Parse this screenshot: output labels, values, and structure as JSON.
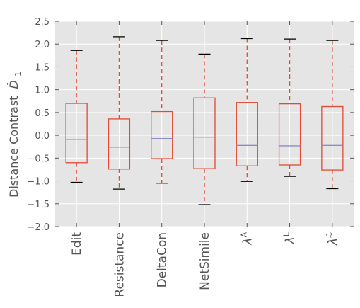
{
  "chart_data": {
    "type": "box",
    "title": "",
    "ylabel": "Distance Contrast",
    "ylabel_symbol": "D̂",
    "ylabel_subscript": "1",
    "ylim": [
      -2.0,
      2.5
    ],
    "yticks": [
      -2.0,
      -1.5,
      -1.0,
      -0.5,
      0.0,
      0.5,
      1.0,
      1.5,
      2.0,
      2.5
    ],
    "ytick_labels": [
      "−2.0",
      "−1.5",
      "−1.0",
      "−0.5",
      "0.0",
      "0.5",
      "1.0",
      "1.5",
      "2.0",
      "2.5"
    ],
    "grid": true,
    "colors": {
      "background": "#e5e5e5",
      "grid": "#ffffff",
      "box": "#e24a33",
      "median": "#8b8bc8",
      "cap": "#000000",
      "tick": "#555555"
    },
    "categories": [
      {
        "label": "Edit",
        "base": "",
        "sup": ""
      },
      {
        "label": "Resistance",
        "base": "",
        "sup": ""
      },
      {
        "label": "DeltaCon",
        "base": "",
        "sup": ""
      },
      {
        "label": "NetSimile",
        "base": "",
        "sup": ""
      },
      {
        "label": "",
        "base": "λ",
        "sup": "A"
      },
      {
        "label": "",
        "base": "λ",
        "sup": "L"
      },
      {
        "label": "",
        "base": "λ",
        "sup": "ℒ"
      }
    ],
    "boxes": [
      {
        "whislo": -1.03,
        "q1": -0.6,
        "med": -0.09,
        "q3": 0.7,
        "whishi": 1.86
      },
      {
        "whislo": -1.18,
        "q1": -0.74,
        "med": -0.26,
        "q3": 0.36,
        "whishi": 2.16
      },
      {
        "whislo": -1.05,
        "q1": -0.51,
        "med": -0.07,
        "q3": 0.52,
        "whishi": 2.08
      },
      {
        "whislo": -1.52,
        "q1": -0.73,
        "med": -0.04,
        "q3": 0.82,
        "whishi": 1.78
      },
      {
        "whislo": -1.01,
        "q1": -0.67,
        "med": -0.22,
        "q3": 0.72,
        "whishi": 2.12
      },
      {
        "whislo": -0.9,
        "q1": -0.65,
        "med": -0.23,
        "q3": 0.69,
        "whishi": 2.11
      },
      {
        "whislo": -1.17,
        "q1": -0.76,
        "med": -0.22,
        "q3": 0.63,
        "whishi": 2.08
      }
    ]
  }
}
